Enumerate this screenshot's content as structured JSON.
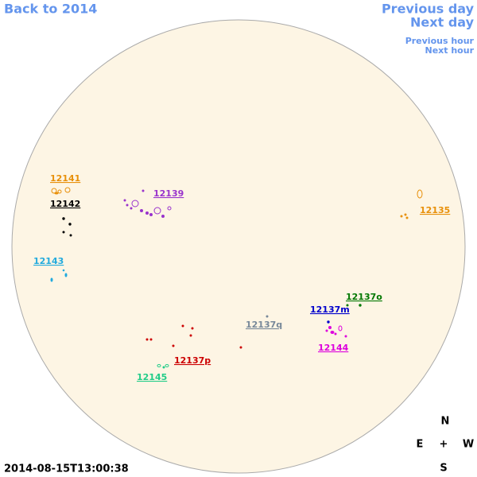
{
  "nav": {
    "back": "Back to 2014",
    "prev_day": "Previous day",
    "next_day": "Next day",
    "prev_hour": "Previous hour",
    "next_hour": "Next hour"
  },
  "regions": [
    {
      "label": "12141",
      "color": "#e8900a"
    },
    {
      "label": "12142",
      "color": "#000000"
    },
    {
      "label": "12139",
      "color": "#9933cc"
    },
    {
      "label": "12135",
      "color": "#e8900a"
    },
    {
      "label": "12143",
      "color": "#22aadd"
    },
    {
      "label": "12137o",
      "color": "#007700"
    },
    {
      "label": "12137m",
      "color": "#0000cc"
    },
    {
      "label": "12137q",
      "color": "#778899"
    },
    {
      "label": "12144",
      "color": "#dd00dd"
    },
    {
      "label": "12137p",
      "color": "#cc0000"
    },
    {
      "label": "12145",
      "color": "#22cc88"
    }
  ],
  "timestamp": "2014-08-15T13:00:38",
  "compass": {
    "north": "N",
    "east": "E",
    "center": "+",
    "west": "W",
    "south": "S"
  }
}
